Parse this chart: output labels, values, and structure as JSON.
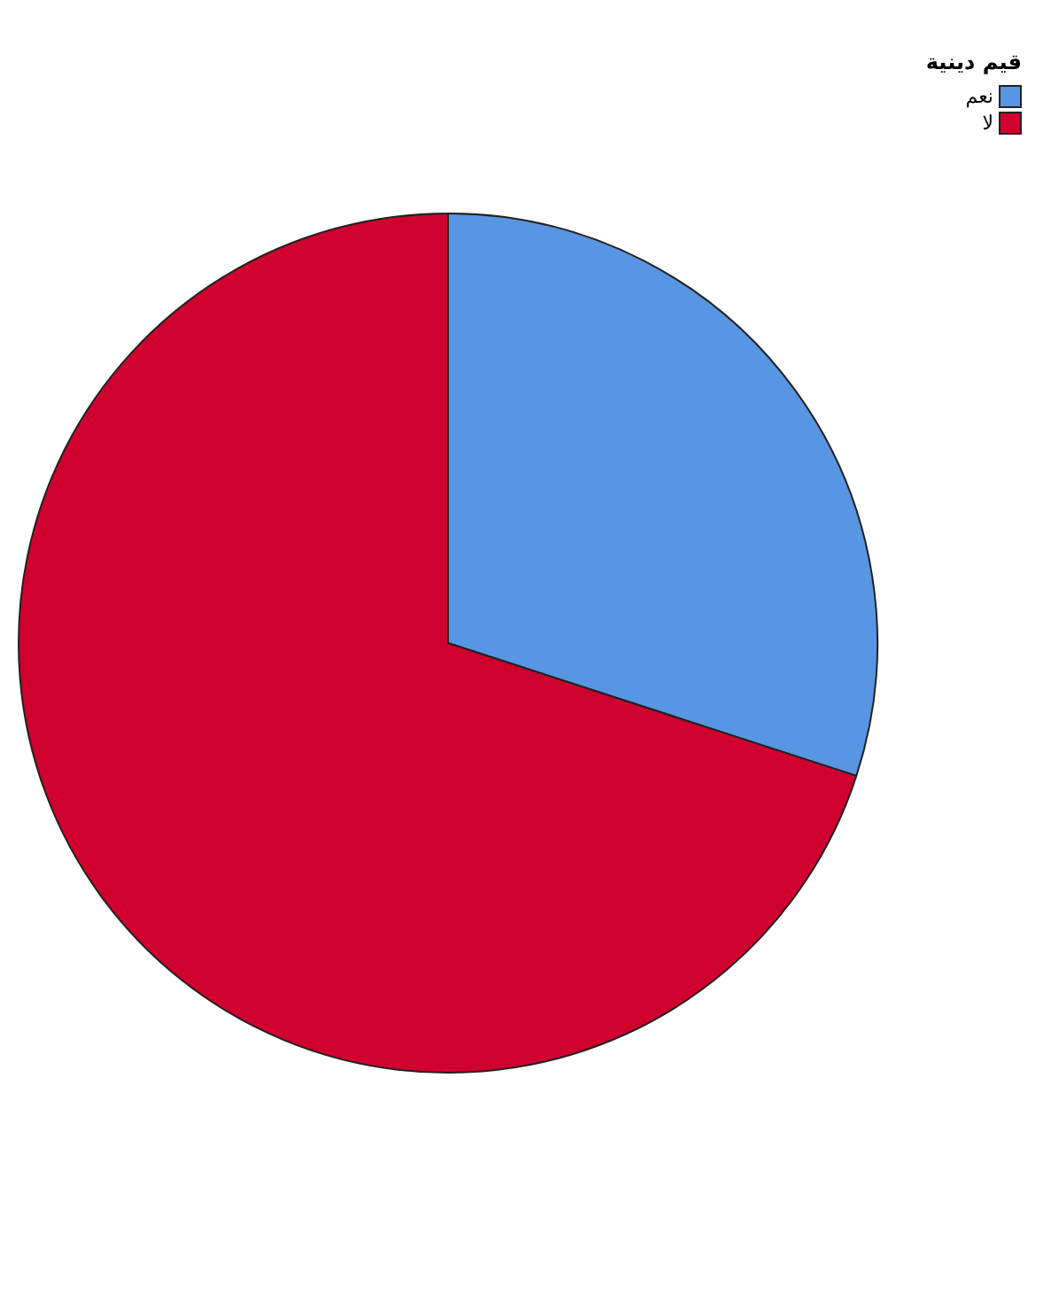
{
  "chart_data": {
    "type": "pie",
    "legend_title": "قيم دينية",
    "categories": [
      "نعم",
      "لا"
    ],
    "values": [
      30,
      70
    ],
    "colors": [
      "#5895e2",
      "#d0002e"
    ],
    "legend": "top right"
  }
}
